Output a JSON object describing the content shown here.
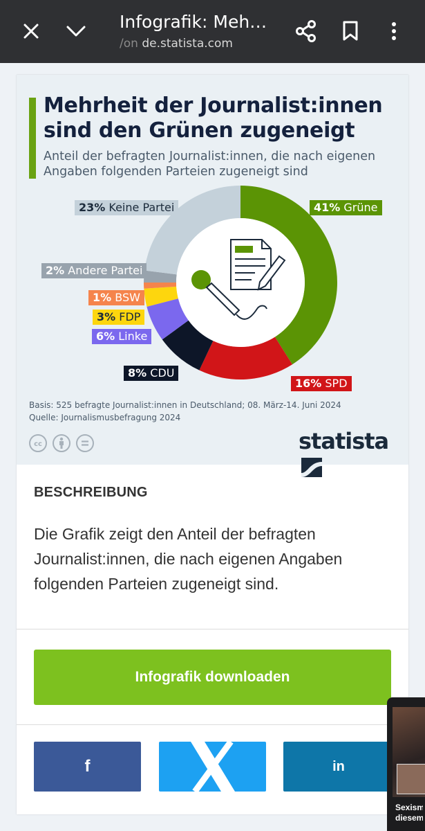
{
  "browser": {
    "title": "Infografik: Meh…",
    "url_prefix": "/on",
    "url_domain": "de.statista.com",
    "icons": {
      "close": "close-icon",
      "collapse": "chevron-down-icon",
      "share": "share-icon",
      "bookmark": "bookmark-icon",
      "menu": "more-vert-icon"
    }
  },
  "infographic": {
    "title": "Mehrheit der Journalist:innen sind den Grünen zugeneigt",
    "subtitle": "Anteil der befragten Journalist:innen, die nach eigenen Angaben folgenden Parteien zugeneigt sind",
    "basis": "Basis: 525 befragte Journalist:innen in Deutschland; 08. März-14. Juni 2024",
    "source": "Quelle: Journalismusbefragung 2024",
    "brand": "statista",
    "license_icons": [
      "cc-icon",
      "by-icon",
      "nd-icon"
    ]
  },
  "chart_data": {
    "type": "pie",
    "title": "Mehrheit der Journalist:innen sind den Grünen zugeneigt",
    "unit": "%",
    "slices": [
      {
        "label": "Grüne",
        "value": 41,
        "pct": "41%",
        "color": "#5b9405"
      },
      {
        "label": "SPD",
        "value": 16,
        "pct": "16%",
        "color": "#d11518"
      },
      {
        "label": "CDU",
        "value": 8,
        "pct": "8%",
        "color": "#0d1628"
      },
      {
        "label": "Linke",
        "value": 6,
        "pct": "6%",
        "color": "#7b68ee"
      },
      {
        "label": "FDP",
        "value": 3,
        "pct": "3%",
        "color": "#fdd60e"
      },
      {
        "label": "BSW",
        "value": 1,
        "pct": "1%",
        "color": "#f5844c"
      },
      {
        "label": "Andere Partei",
        "value": 2,
        "pct": "2%",
        "color": "#98a3ad"
      },
      {
        "label": "Keine Partei",
        "value": 23,
        "pct": "23%",
        "color": "#c4d1da"
      }
    ]
  },
  "description": {
    "heading": "BESCHREIBUNG",
    "text": "Die Grafik zeigt den Anteil der befragten Journalist:innen, die nach eigenen Angaben folgenden Parteien zugeneigt sind."
  },
  "download": {
    "label": "Infografik downloaden"
  },
  "social": [
    {
      "name": "facebook",
      "glyph": "f",
      "color": "#3b5998"
    },
    {
      "name": "x",
      "glyph": "X",
      "color": "#1da1f2"
    },
    {
      "name": "linkedin",
      "glyph": "in",
      "color": "#0e76a8"
    }
  ],
  "video_preview": {
    "caption": "Sexismus diesem"
  }
}
